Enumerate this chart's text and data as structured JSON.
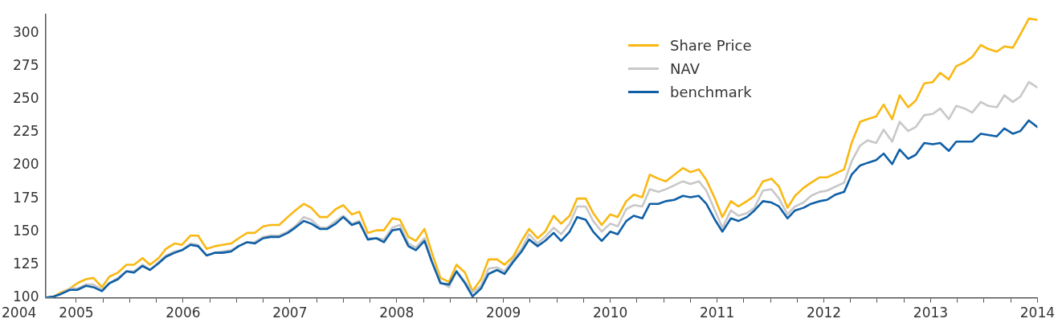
{
  "chart_data": {
    "type": "line",
    "marker": "none",
    "line_style": "solid",
    "legend": "top right",
    "x": [
      2004.71,
      2004.79,
      2004.86,
      2004.94,
      2005.01,
      2005.09,
      2005.16,
      2005.24,
      2005.31,
      2005.39,
      2005.47,
      2005.54,
      2005.62,
      2005.69,
      2005.77,
      2005.84,
      2005.92,
      2005.99,
      2006.07,
      2006.14,
      2006.22,
      2006.3,
      2006.37,
      2006.45,
      2006.52,
      2006.6,
      2006.67,
      2006.75,
      2006.82,
      2006.9,
      2006.98,
      2007.05,
      2007.13,
      2007.2,
      2007.28,
      2007.35,
      2007.43,
      2007.5,
      2007.58,
      2007.65,
      2007.73,
      2007.81,
      2007.88,
      2007.96,
      2008.03,
      2008.11,
      2008.18,
      2008.26,
      2008.33,
      2008.41,
      2008.49,
      2008.56,
      2008.64,
      2008.71,
      2008.79,
      2008.86,
      2008.94,
      2009.01,
      2009.09,
      2009.17,
      2009.24,
      2009.32,
      2009.39,
      2009.47,
      2009.54,
      2009.62,
      2009.69,
      2009.77,
      2009.84,
      2009.92,
      2010.0,
      2010.07,
      2010.15,
      2010.22,
      2010.3,
      2010.37,
      2010.45,
      2010.52,
      2010.6,
      2010.68,
      2010.75,
      2010.83,
      2010.9,
      2010.98,
      2011.05,
      2011.13,
      2011.2,
      2011.28,
      2011.35,
      2011.43,
      2011.51,
      2011.58,
      2011.66,
      2011.73,
      2011.81,
      2011.88,
      2011.96,
      2012.03,
      2012.11,
      2012.19,
      2012.26,
      2012.34,
      2012.41,
      2012.49,
      2012.56,
      2012.64,
      2012.71,
      2012.79,
      2012.86,
      2012.94,
      2013.02,
      2013.09,
      2013.17,
      2013.24,
      2013.32,
      2013.39,
      2013.47,
      2013.54,
      2013.62,
      2013.69,
      2013.77,
      2013.84,
      2013.92,
      2014.0
    ],
    "xlim": [
      2004.71,
      2014
    ],
    "annotations": [
      "2004"
    ],
    "xticks": [
      2005,
      {
        "value": 2005.25,
        "label": null
      },
      {
        "value": 2005.5,
        "label": null
      },
      {
        "value": 2005.75,
        "label": null
      },
      2006,
      {
        "value": 2006.25,
        "label": null
      },
      {
        "value": 2006.5,
        "label": null
      },
      {
        "value": 2006.75,
        "label": null
      },
      2007,
      {
        "value": 2007.25,
        "label": null
      },
      {
        "value": 2007.5,
        "label": null
      },
      {
        "value": 2007.75,
        "label": null
      },
      2008,
      {
        "value": 2008.25,
        "label": null
      },
      {
        "value": 2008.5,
        "label": null
      },
      {
        "value": 2008.75,
        "label": null
      },
      2009,
      {
        "value": 2009.25,
        "label": null
      },
      {
        "value": 2009.5,
        "label": null
      },
      {
        "value": 2009.75,
        "label": null
      },
      2010,
      {
        "value": 2010.25,
        "label": null
      },
      {
        "value": 2010.5,
        "label": null
      },
      {
        "value": 2010.75,
        "label": null
      },
      2011,
      {
        "value": 2011.25,
        "label": null
      },
      {
        "value": 2011.5,
        "label": null
      },
      {
        "value": 2011.75,
        "label": null
      },
      2012,
      {
        "value": 2012.25,
        "label": null
      },
      {
        "value": 2012.5,
        "label": null
      },
      {
        "value": 2012.75,
        "label": null
      },
      2013,
      {
        "value": 2013.25,
        "label": null
      },
      {
        "value": 2013.5,
        "label": null
      },
      {
        "value": 2013.75,
        "label": null
      },
      2014
    ],
    "ylim": [
      100,
      314
    ],
    "yticks": [
      100,
      125,
      150,
      175,
      200,
      225,
      250,
      275,
      300
    ],
    "series": [
      {
        "name": "Share Price",
        "color": "#f9b812",
        "values": [
          100,
          101,
          104,
          107,
          111,
          114,
          115,
          108,
          116,
          119,
          125,
          125,
          130,
          125,
          130,
          137,
          141,
          140,
          147,
          147,
          137,
          139,
          140,
          141,
          145,
          149,
          149,
          154,
          155,
          155,
          161,
          166,
          171,
          168,
          161,
          161,
          167,
          170,
          163,
          165,
          149,
          151,
          151,
          160,
          159,
          146,
          143,
          152,
          134,
          115,
          112,
          125,
          119,
          105,
          114,
          129,
          129,
          125,
          131,
          143,
          152,
          145,
          150,
          162,
          156,
          162,
          175,
          175,
          164,
          155,
          163,
          161,
          173,
          178,
          176,
          193,
          190,
          188,
          193,
          198,
          195,
          197,
          189,
          175,
          161,
          173,
          169,
          173,
          177,
          188,
          190,
          184,
          168,
          177,
          183,
          187,
          191,
          191,
          194,
          197,
          217,
          233,
          235,
          237,
          246,
          235,
          253,
          244,
          249,
          262,
          263,
          270,
          265,
          275,
          278,
          282,
          291,
          288,
          286,
          290,
          289,
          299,
          311,
          310
        ]
      },
      {
        "name": "NAV",
        "color": "#c8c8c8",
        "values": [
          100,
          101,
          103,
          107,
          107,
          110,
          110,
          106,
          111,
          115,
          120,
          120,
          125,
          121,
          127,
          132,
          135,
          136,
          141,
          140,
          132,
          134,
          135,
          136,
          139,
          142,
          142,
          146,
          147,
          147,
          150,
          154,
          161,
          159,
          153,
          153,
          158,
          162,
          156,
          158,
          145,
          145,
          144,
          153,
          155,
          141,
          138,
          145,
          128,
          112,
          108,
          120,
          112,
          104,
          109,
          122,
          123,
          120,
          129,
          137,
          148,
          141,
          146,
          153,
          148,
          156,
          169,
          169,
          158,
          150,
          156,
          154,
          167,
          170,
          169,
          182,
          180,
          182,
          185,
          188,
          186,
          188,
          181,
          166,
          153,
          166,
          162,
          164,
          168,
          181,
          182,
          175,
          163,
          169,
          172,
          177,
          180,
          181,
          184,
          187,
          203,
          215,
          219,
          217,
          227,
          218,
          233,
          226,
          229,
          238,
          239,
          243,
          235,
          245,
          243,
          240,
          248,
          245,
          244,
          253,
          248,
          252,
          263,
          259
        ]
      },
      {
        "name": "benchmark",
        "color": "#0f5fa6",
        "values": [
          100,
          101,
          103,
          106,
          106,
          109,
          108,
          105,
          111,
          114,
          120,
          119,
          124,
          121,
          126,
          131,
          134,
          136,
          140,
          139,
          132,
          134,
          134,
          135,
          139,
          142,
          141,
          145,
          146,
          146,
          149,
          153,
          158,
          156,
          152,
          152,
          156,
          161,
          155,
          157,
          144,
          145,
          142,
          151,
          152,
          139,
          136,
          143,
          127,
          111,
          110,
          120,
          111,
          101,
          107,
          118,
          121,
          118,
          127,
          135,
          144,
          139,
          143,
          149,
          143,
          150,
          161,
          159,
          150,
          143,
          150,
          148,
          158,
          162,
          160,
          171,
          171,
          173,
          174,
          177,
          176,
          177,
          171,
          159,
          150,
          160,
          158,
          161,
          166,
          173,
          172,
          169,
          160,
          166,
          168,
          171,
          173,
          174,
          178,
          180,
          193,
          200,
          202,
          204,
          209,
          201,
          212,
          205,
          208,
          217,
          216,
          217,
          211,
          218,
          218,
          218,
          224,
          223,
          222,
          228,
          224,
          226,
          234,
          229
        ]
      }
    ]
  }
}
